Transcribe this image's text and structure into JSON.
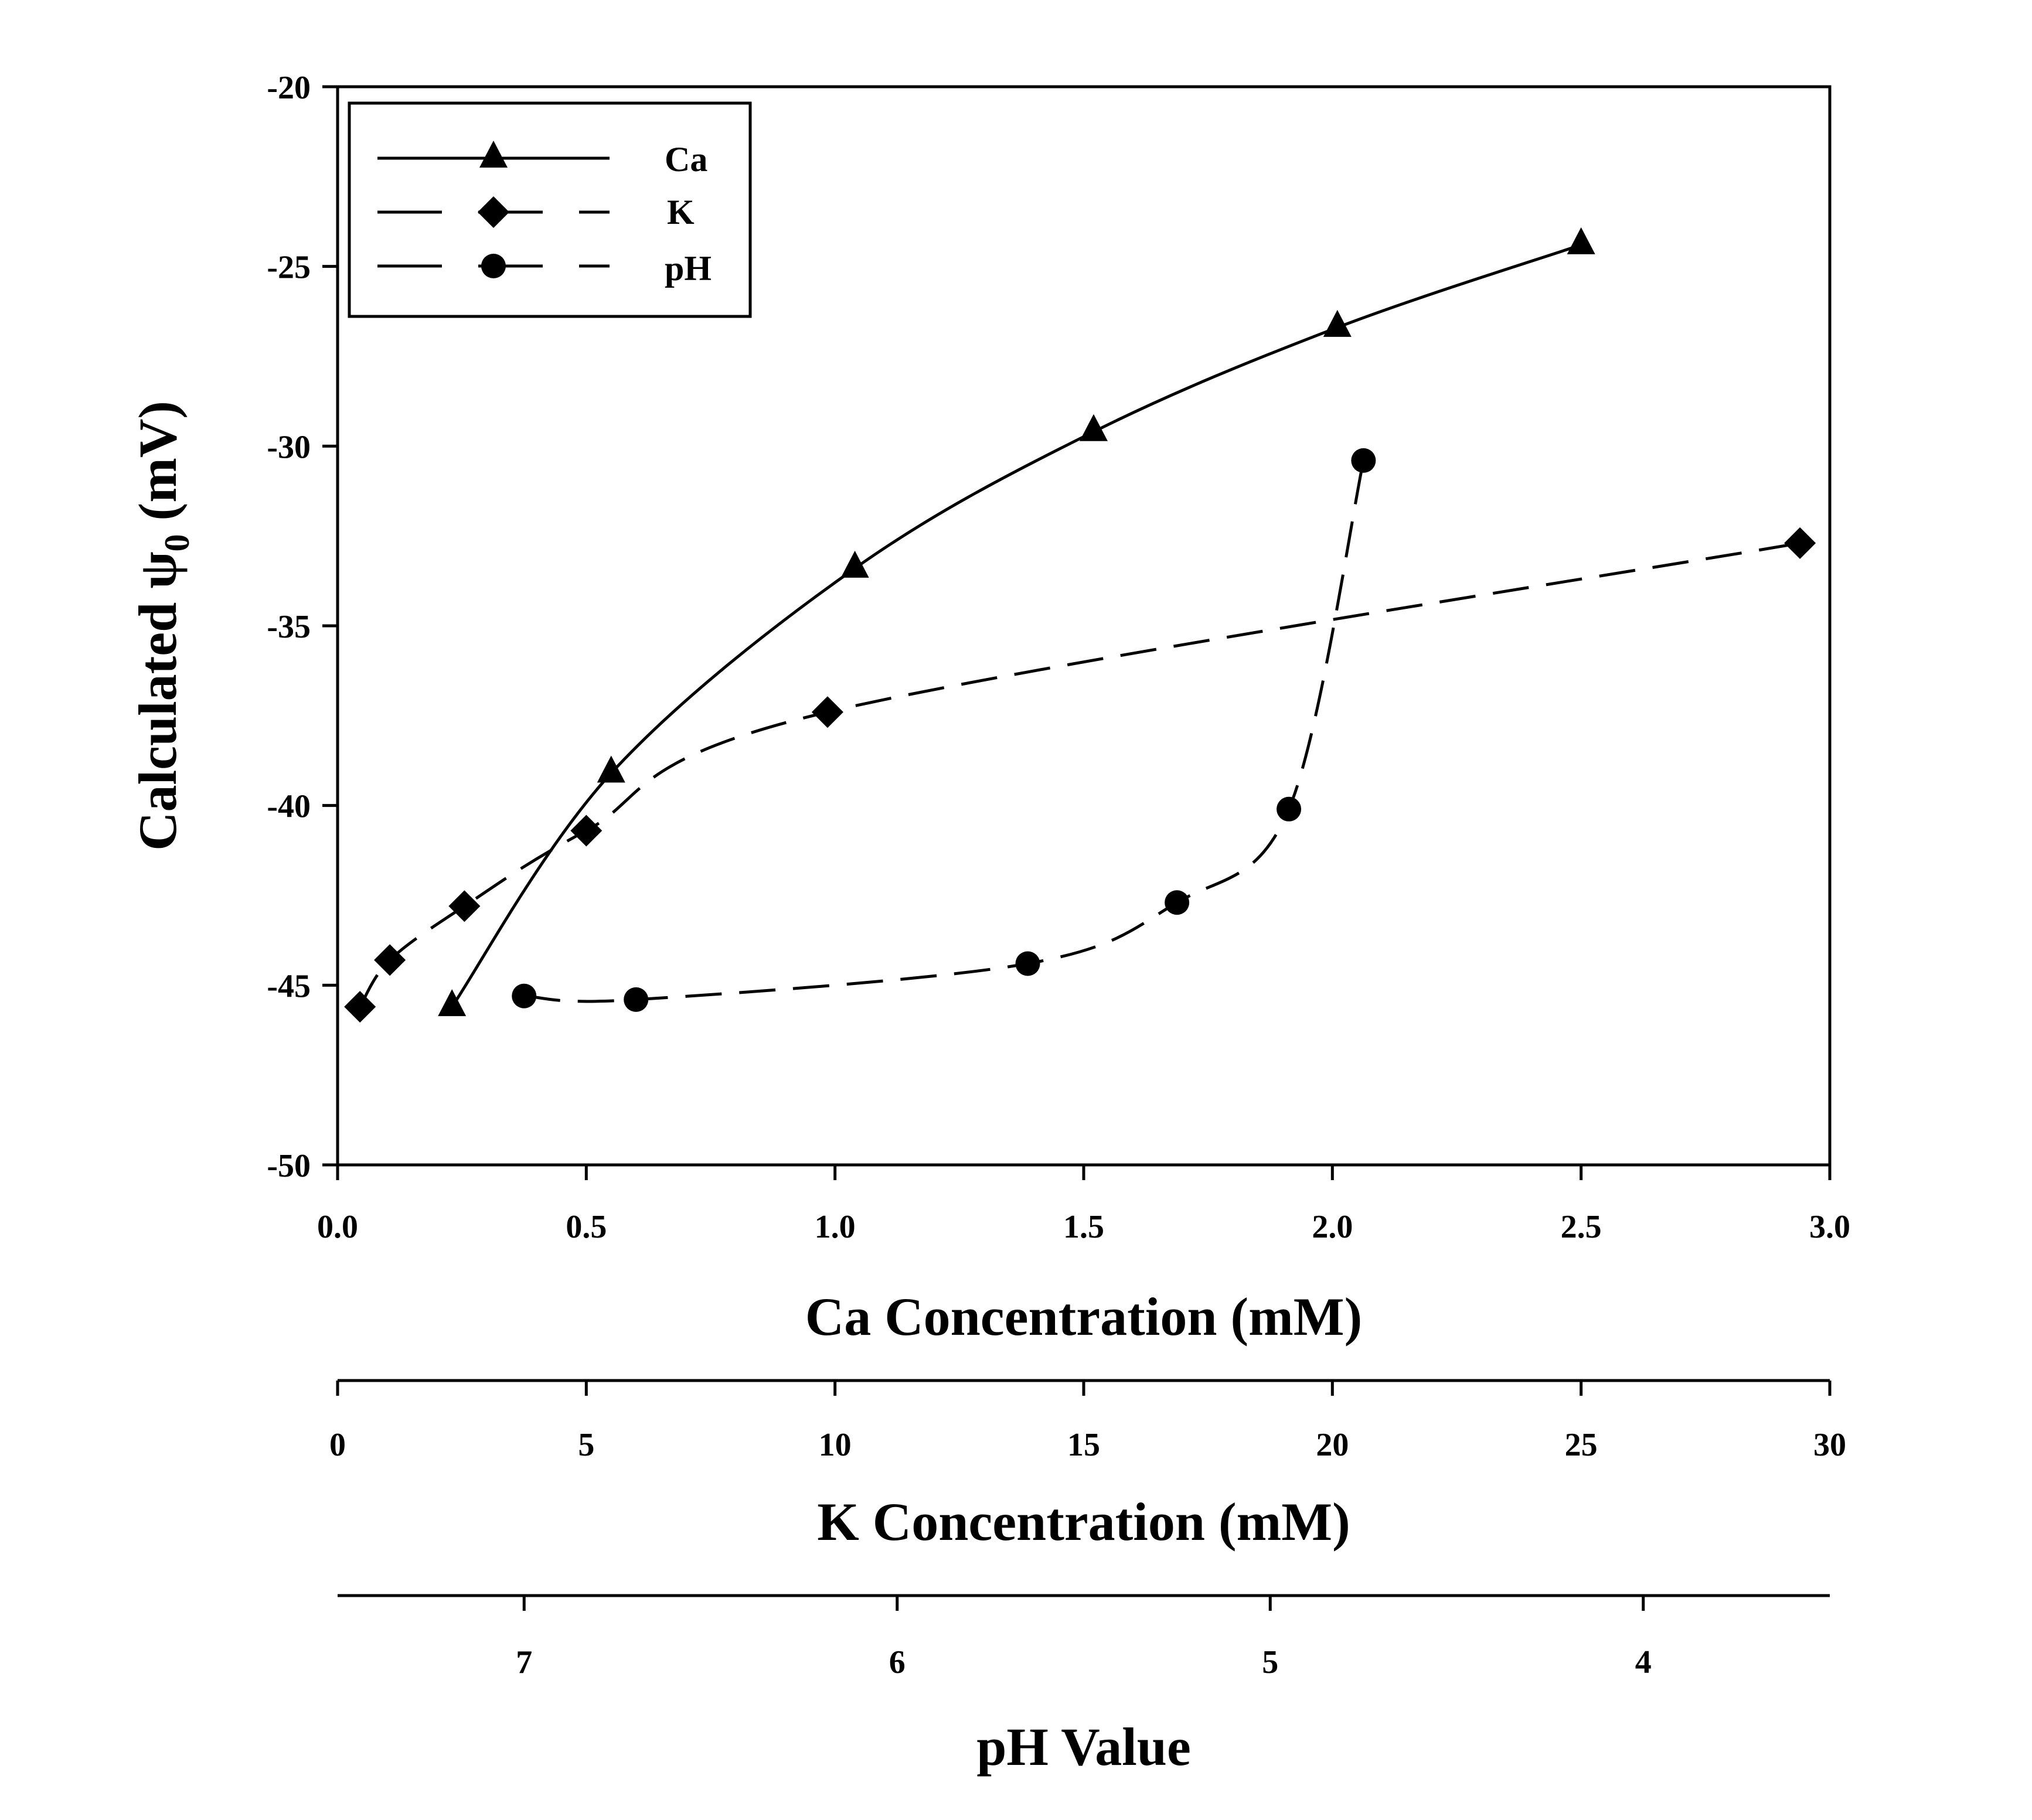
{
  "chart_data": {
    "type": "line",
    "ylabel_main": "Calculated ψ",
    "ylabel_sub": "0",
    "ylabel_unit": " (mV)",
    "ylim": [
      -50,
      -20
    ],
    "yticks": [
      "-20",
      "-25",
      "-30",
      "-35",
      "-40",
      "-45",
      "-50"
    ],
    "x_axes": [
      {
        "id": "ca",
        "label": "Ca Concentration (mM)",
        "range": [
          0,
          3
        ],
        "tick_values": [
          0,
          0.5,
          1,
          1.5,
          2,
          2.5,
          3
        ],
        "tick_labels": [
          "0.0",
          "0.5",
          "1.0",
          "1.5",
          "2.0",
          "2.5",
          "3.0"
        ]
      },
      {
        "id": "k",
        "label": "K Concentration (mM)",
        "range": [
          0,
          30
        ],
        "tick_values": [
          0,
          5,
          10,
          15,
          20,
          25,
          30
        ],
        "tick_labels": [
          "0",
          "5",
          "10",
          "15",
          "20",
          "25",
          "30"
        ]
      },
      {
        "id": "ph",
        "label": "pH Value",
        "range": [
          7.5,
          3.5
        ],
        "tick_values": [
          7,
          6,
          5,
          4
        ],
        "tick_labels": [
          "7",
          "6",
          "5",
          "4"
        ]
      }
    ],
    "legend": {
      "placement": "top-left"
    },
    "series": [
      {
        "name": "Ca",
        "marker": "triangle",
        "line": "solid",
        "axis": "ca",
        "x": [
          0.23,
          0.55,
          1.04,
          1.52,
          2.01,
          2.5
        ],
        "y": [
          -45.6,
          -39.1,
          -33.4,
          -29.6,
          -26.7,
          -24.4
        ]
      },
      {
        "name": "K",
        "marker": "diamond",
        "line": "long-dash",
        "axis": "k",
        "x": [
          0.45,
          1.05,
          2.55,
          5.0,
          9.85,
          29.4
        ],
        "y": [
          -45.6,
          -44.3,
          -42.8,
          -40.7,
          -37.4,
          -32.7
        ]
      },
      {
        "name": "pH",
        "marker": "circle",
        "line": "long-dash",
        "axis": "ph",
        "x": [
          7.0,
          6.7,
          5.65,
          5.25,
          4.95,
          4.75
        ],
        "y": [
          -45.3,
          -45.4,
          -44.4,
          -42.7,
          -40.1,
          -30.4
        ]
      }
    ]
  }
}
